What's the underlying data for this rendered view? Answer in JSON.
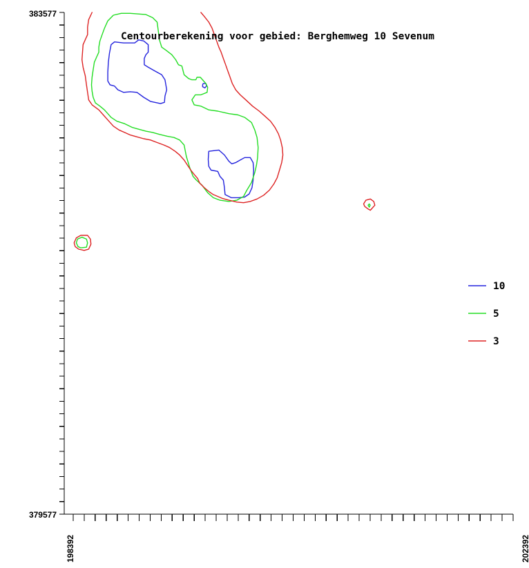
{
  "chart_data": {
    "type": "contour",
    "title": "Centourberekening voor gebied: Berghemweg 10 Sevenum",
    "xlim": [
      198392,
      202392
    ],
    "ylim": [
      379577,
      383577
    ],
    "x_tick_labels": [
      "198392",
      "202392"
    ],
    "y_tick_labels": [
      "383577",
      "379577"
    ],
    "grid": false,
    "legend_position": "right",
    "series": [
      {
        "name": "10",
        "color": "#2222dd",
        "contours": [
          [
            [
              198795,
              383252
            ],
            [
              198810,
              383320
            ],
            [
              198840,
              383342
            ],
            [
              198920,
              383334
            ],
            [
              199020,
              383334
            ],
            [
              199055,
              383358
            ],
            [
              199100,
              383350
            ],
            [
              199140,
              383320
            ],
            [
              199140,
              383260
            ],
            [
              199120,
              383240
            ],
            [
              199105,
              383210
            ],
            [
              199105,
              383160
            ],
            [
              199140,
              383140
            ],
            [
              199200,
              383110
            ],
            [
              199260,
              383080
            ],
            [
              199290,
              383040
            ],
            [
              199305,
              382960
            ],
            [
              199290,
              382910
            ],
            [
              199285,
              382860
            ],
            [
              199250,
              382850
            ],
            [
              199160,
              382868
            ],
            [
              199100,
              382900
            ],
            [
              199040,
              382940
            ],
            [
              198980,
              382945
            ],
            [
              198920,
              382940
            ],
            [
              198870,
              382960
            ],
            [
              198840,
              382990
            ],
            [
              198800,
              383000
            ],
            [
              198780,
              383030
            ],
            [
              198780,
              383100
            ],
            [
              198785,
              383180
            ],
            [
              198795,
              383252
            ]
          ],
          [
            [
              199625,
              383000
            ],
            [
              199625,
              382985
            ],
            [
              199645,
              382975
            ],
            [
              199660,
              382990
            ],
            [
              199655,
              383010
            ],
            [
              199630,
              383010
            ],
            [
              199625,
              383000
            ]
          ],
          [
            [
              199675,
              382405
            ],
            [
              199680,
              382470
            ],
            [
              199770,
              382480
            ],
            [
              199820,
              382440
            ],
            [
              199860,
              382390
            ],
            [
              199885,
              382370
            ],
            [
              199920,
              382380
            ],
            [
              199960,
              382400
            ],
            [
              200000,
              382420
            ],
            [
              200050,
              382420
            ],
            [
              200075,
              382380
            ],
            [
              200080,
              382320
            ],
            [
              200075,
              382240
            ],
            [
              200065,
              382180
            ],
            [
              200040,
              382130
            ],
            [
              200000,
              382105
            ],
            [
              199950,
              382100
            ],
            [
              199880,
              382100
            ],
            [
              199825,
              382125
            ],
            [
              199820,
              382180
            ],
            [
              199810,
              382240
            ],
            [
              199780,
              382270
            ],
            [
              199760,
              382310
            ],
            [
              199700,
              382320
            ],
            [
              199680,
              382350
            ],
            [
              199675,
              382405
            ]
          ]
        ]
      },
      {
        "name": "5",
        "color": "#22dd22",
        "contours": [
          [
            [
              198780,
              383510
            ],
            [
              198830,
              383555
            ],
            [
              198900,
              383570
            ],
            [
              198980,
              383570
            ],
            [
              199050,
              383565
            ],
            [
              199120,
              383560
            ],
            [
              199180,
              383535
            ],
            [
              199220,
              383500
            ],
            [
              199230,
              383430
            ],
            [
              199240,
              383360
            ],
            [
              199260,
              383300
            ],
            [
              199300,
              383275
            ],
            [
              199350,
              383240
            ],
            [
              199385,
              383200
            ],
            [
              199410,
              383160
            ],
            [
              199440,
              383150
            ],
            [
              199460,
              383080
            ],
            [
              199500,
              383050
            ],
            [
              199530,
              383040
            ],
            [
              199565,
              383040
            ],
            [
              199575,
              383060
            ],
            [
              199605,
              383060
            ],
            [
              199655,
              383010
            ],
            [
              199670,
              382980
            ],
            [
              199665,
              382940
            ],
            [
              199610,
              382920
            ],
            [
              199560,
              382920
            ],
            [
              199530,
              382880
            ],
            [
              199550,
              382840
            ],
            [
              199610,
              382830
            ],
            [
              199680,
              382800
            ],
            [
              199760,
              382790
            ],
            [
              199860,
              382770
            ],
            [
              199940,
              382760
            ],
            [
              200000,
              382740
            ],
            [
              200060,
              382700
            ],
            [
              200090,
              382640
            ],
            [
              200110,
              382580
            ],
            [
              200120,
              382500
            ],
            [
              200115,
              382420
            ],
            [
              200105,
              382360
            ],
            [
              200090,
              382300
            ],
            [
              200060,
              382220
            ],
            [
              200020,
              382160
            ],
            [
              199990,
              382110
            ],
            [
              199930,
              382080
            ],
            [
              199860,
              382070
            ],
            [
              199780,
              382080
            ],
            [
              199720,
              382100
            ],
            [
              199670,
              382140
            ],
            [
              199620,
              382200
            ],
            [
              199570,
              382240
            ],
            [
              199540,
              382270
            ],
            [
              199510,
              382340
            ],
            [
              199480,
              382430
            ],
            [
              199460,
              382520
            ],
            [
              199420,
              382560
            ],
            [
              199370,
              382580
            ],
            [
              199310,
              382590
            ],
            [
              199240,
              382605
            ],
            [
              199180,
              382620
            ],
            [
              199120,
              382630
            ],
            [
              199060,
              382645
            ],
            [
              199000,
              382660
            ],
            [
              198930,
              382690
            ],
            [
              198860,
              382710
            ],
            [
              198810,
              382740
            ],
            [
              198780,
              382770
            ],
            [
              198750,
              382800
            ],
            [
              198710,
              382830
            ],
            [
              198670,
              382855
            ],
            [
              198650,
              382900
            ],
            [
              198640,
              382950
            ],
            [
              198635,
              383000
            ],
            [
              198640,
              383060
            ],
            [
              198650,
              383120
            ],
            [
              198660,
              383180
            ],
            [
              198680,
              383220
            ],
            [
              198700,
              383260
            ],
            [
              198700,
              383300
            ],
            [
              198710,
              383350
            ],
            [
              198730,
              383400
            ],
            [
              198750,
              383450
            ],
            [
              198780,
              383510
            ]
          ],
          [
            [
              198500,
              381740
            ],
            [
              198515,
              381710
            ],
            [
              198540,
              381700
            ],
            [
              198590,
              381705
            ],
            [
              198600,
              381740
            ],
            [
              198590,
              381770
            ],
            [
              198550,
              381785
            ],
            [
              198510,
              381770
            ],
            [
              198500,
              381740
            ]
          ],
          [
            [
              201100,
              382040
            ],
            [
              201110,
              382025
            ],
            [
              201118,
              382040
            ],
            [
              201110,
              382050
            ],
            [
              201100,
              382040
            ]
          ]
        ]
      },
      {
        "name": "3",
        "color": "#dd2222",
        "contours": [
          [
            [
              198640,
              383580
            ],
            [
              198610,
              383520
            ],
            [
              198600,
              383460
            ],
            [
              198600,
              383400
            ],
            [
              198580,
              383360
            ],
            [
              198560,
              383320
            ],
            [
              198555,
              383260
            ],
            [
              198550,
              383200
            ],
            [
              198560,
              383140
            ],
            [
              198580,
              383070
            ],
            [
              198590,
              383000
            ],
            [
              198600,
              382940
            ],
            [
              198610,
              382880
            ],
            [
              198640,
              382840
            ],
            [
              198700,
              382800
            ],
            [
              198740,
              382760
            ],
            [
              198780,
              382720
            ],
            [
              198830,
              382670
            ],
            [
              198880,
              382640
            ],
            [
              198930,
              382620
            ],
            [
              198980,
              382600
            ],
            [
              199040,
              382585
            ],
            [
              199100,
              382570
            ],
            [
              199160,
              382560
            ],
            [
              199220,
              382540
            ],
            [
              199280,
              382520
            ],
            [
              199330,
              382500
            ],
            [
              199380,
              382470
            ],
            [
              199420,
              382440
            ],
            [
              199460,
              382400
            ],
            [
              199490,
              382360
            ],
            [
              199520,
              382320
            ],
            [
              199550,
              382285
            ],
            [
              199580,
              382255
            ],
            [
              199600,
              382215
            ],
            [
              199640,
              382180
            ],
            [
              199680,
              382150
            ],
            [
              199720,
              382125
            ],
            [
              199760,
              382110
            ],
            [
              199800,
              382095
            ],
            [
              199860,
              382080
            ],
            [
              199930,
              382065
            ],
            [
              199990,
              382060
            ],
            [
              200050,
              382070
            ],
            [
              200110,
              382090
            ],
            [
              200170,
              382120
            ],
            [
              200220,
              382160
            ],
            [
              200260,
              382210
            ],
            [
              200290,
              382260
            ],
            [
              200310,
              382320
            ],
            [
              200330,
              382380
            ],
            [
              200340,
              382440
            ],
            [
              200335,
              382500
            ],
            [
              200320,
              382560
            ],
            [
              200300,
              382610
            ],
            [
              200270,
              382660
            ],
            [
              200230,
              382710
            ],
            [
              200180,
              382750
            ],
            [
              200130,
              382790
            ],
            [
              200070,
              382830
            ],
            [
              200010,
              382880
            ],
            [
              199960,
              382920
            ],
            [
              199920,
              382960
            ],
            [
              199890,
              383010
            ],
            [
              199870,
              383060
            ],
            [
              199850,
              383110
            ],
            [
              199830,
              383160
            ],
            [
              199810,
              383210
            ],
            [
              199790,
              383260
            ],
            [
              199770,
              383300
            ],
            [
              199750,
              383350
            ],
            [
              199730,
              383400
            ],
            [
              199710,
              383450
            ],
            [
              199680,
              383500
            ],
            [
              199640,
              383545
            ],
            [
              199610,
              383580
            ]
          ],
          [
            [
              198480,
              381740
            ],
            [
              198500,
              381780
            ],
            [
              198540,
              381800
            ],
            [
              198600,
              381800
            ],
            [
              198625,
              381770
            ],
            [
              198630,
              381730
            ],
            [
              198610,
              381690
            ],
            [
              198570,
              381680
            ],
            [
              198520,
              381690
            ],
            [
              198490,
              381710
            ],
            [
              198480,
              381740
            ]
          ],
          [
            [
              201060,
              382050
            ],
            [
              201080,
              382080
            ],
            [
              201120,
              382090
            ],
            [
              201150,
              382070
            ],
            [
              201160,
              382040
            ],
            [
              201140,
              382020
            ],
            [
              201120,
              382000
            ],
            [
              201100,
              382010
            ],
            [
              201070,
              382030
            ],
            [
              201060,
              382050
            ]
          ]
        ]
      }
    ]
  }
}
